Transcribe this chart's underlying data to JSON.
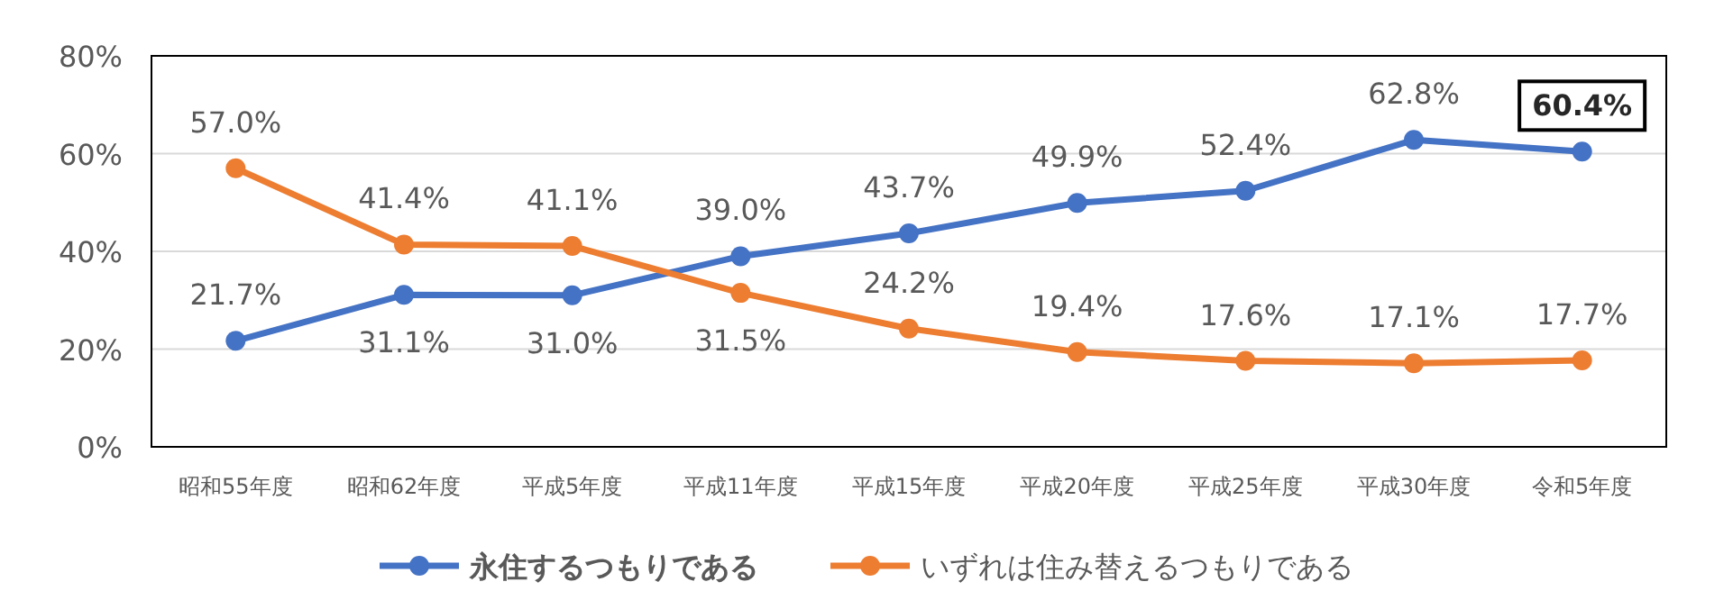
{
  "chart_data": {
    "type": "line",
    "categories": [
      "昭和55年度",
      "昭和62年度",
      "平成5年度",
      "平成11年度",
      "平成15年度",
      "平成20年度",
      "平成25年度",
      "平成30年度",
      "令和5年度"
    ],
    "series": [
      {
        "name": "永住するつもりである",
        "color": "#4472c4",
        "values": [
          21.7,
          31.1,
          31.0,
          39.0,
          43.7,
          49.9,
          52.4,
          62.8,
          60.4
        ],
        "value_labels": [
          "21.7%",
          "31.1%",
          "31.0%",
          "39.0%",
          "43.7%",
          "49.9%",
          "52.4%",
          "62.8%",
          "60.4%"
        ]
      },
      {
        "name": "いずれは住み替えるつもりである",
        "color": "#ed7d31",
        "values": [
          57.0,
          41.4,
          41.1,
          31.5,
          24.2,
          19.4,
          17.6,
          17.1,
          17.7
        ],
        "value_labels": [
          "57.0%",
          "41.4%",
          "41.1%",
          "31.5%",
          "24.2%",
          "19.4%",
          "17.6%",
          "17.1%",
          "17.7%"
        ]
      }
    ],
    "ylim": [
      0,
      80
    ],
    "yticks": [
      {
        "value": 0,
        "label": "0%"
      },
      {
        "value": 20,
        "label": "20%"
      },
      {
        "value": 40,
        "label": "40%"
      },
      {
        "value": 60,
        "label": "60%"
      },
      {
        "value": 80,
        "label": "80%"
      }
    ],
    "grid": "y",
    "legend": "bottom",
    "marker": "circle",
    "line_style": "solid"
  }
}
